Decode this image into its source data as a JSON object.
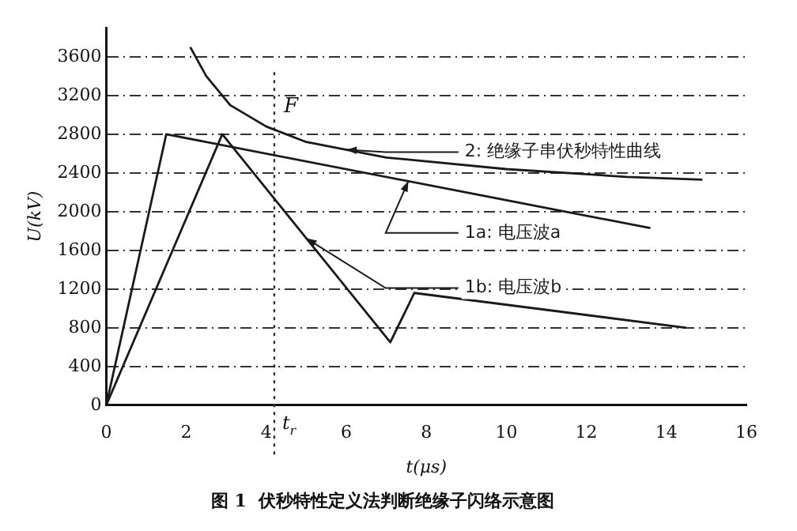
{
  "chart_data": {
    "type": "line",
    "title": "图 1  伏秒特性定义法判断绝缘子闪络示意图",
    "xlabel": "t(μs)",
    "ylabel": "U(kV)",
    "series": [
      {
        "name": "2: 绝缘子串伏秒特性曲线",
        "color": "#1a1a1a",
        "x": [
          2.1,
          2.5,
          3.1,
          4,
          5,
          7,
          10,
          13,
          14.9
        ],
        "values": [
          3700,
          3400,
          3100,
          2880,
          2720,
          2560,
          2440,
          2360,
          2330
        ]
      },
      {
        "name": "1a: 电压波a",
        "color": "#1a1a1a",
        "x": [
          0,
          1.5,
          13.6
        ],
        "values": [
          0,
          2800,
          1830
        ]
      },
      {
        "name": "1b: 电压波b",
        "color": "#1a1a1a",
        "x": [
          0,
          2.9,
          7.1,
          7.7,
          14.5
        ],
        "values": [
          0,
          2800,
          650,
          1160,
          800
        ]
      }
    ],
    "xlim": [
      0,
      16
    ],
    "xticks": [
      0,
      2,
      4,
      6,
      8,
      10,
      12,
      14,
      16
    ],
    "ylim": [
      0,
      3900
    ],
    "yticks": [
      0,
      400,
      800,
      1200,
      1600,
      2000,
      2400,
      2800,
      3200,
      3600
    ],
    "ref_lines": [
      {
        "axis": "x",
        "value": 4.2,
        "label": "t$_{r}$",
        "line_style": "dotted"
      }
    ],
    "annotations": [
      {
        "text": "F",
        "x": 4.2,
        "y": 2800
      }
    ],
    "grid": "y",
    "legend": false,
    "marker": "none",
    "line_style": "solid"
  }
}
